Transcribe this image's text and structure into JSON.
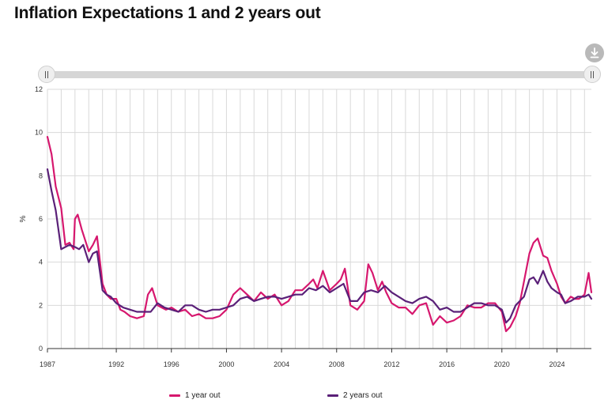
{
  "title": "Inflation Expectations 1 and 2 years out",
  "download_icon": "download-icon",
  "colors": {
    "series1": "#d6176e",
    "series2": "#5a2078",
    "grid": "#d9d9d9",
    "axis": "#333333"
  },
  "chart_data": {
    "type": "line",
    "title": "Inflation Expectations 1 and 2 years out",
    "xlabel": "",
    "ylabel": "%",
    "xlim": [
      1987,
      2026.5
    ],
    "ylim": [
      0,
      12
    ],
    "x_ticks": [
      1987,
      1992,
      1996,
      2000,
      2004,
      2008,
      2012,
      2016,
      2020,
      2024
    ],
    "y_ticks": [
      0,
      2,
      4,
      6,
      8,
      10,
      12
    ],
    "grid": true,
    "legend_position": "bottom",
    "series": [
      {
        "name": "1 year out",
        "x": [
          1987.0,
          1987.3,
          1987.6,
          1988.0,
          1988.3,
          1988.6,
          1988.9,
          1989.0,
          1989.2,
          1989.5,
          1990.0,
          1990.3,
          1990.6,
          1991.0,
          1991.3,
          1991.6,
          1992.0,
          1992.3,
          1992.6,
          1993.0,
          1993.5,
          1994.0,
          1994.3,
          1994.6,
          1995.0,
          1995.3,
          1995.6,
          1996.0,
          1996.5,
          1997.0,
          1997.5,
          1998.0,
          1998.5,
          1999.0,
          1999.5,
          2000.0,
          2000.5,
          2001.0,
          2001.5,
          2002.0,
          2002.5,
          2003.0,
          2003.5,
          2004.0,
          2004.5,
          2005.0,
          2005.5,
          2006.0,
          2006.3,
          2006.6,
          2007.0,
          2007.5,
          2008.0,
          2008.3,
          2008.6,
          2009.0,
          2009.5,
          2010.0,
          2010.3,
          2010.6,
          2011.0,
          2011.3,
          2011.6,
          2012.0,
          2012.5,
          2013.0,
          2013.5,
          2014.0,
          2014.5,
          2015.0,
          2015.5,
          2016.0,
          2016.5,
          2017.0,
          2017.5,
          2018.0,
          2018.5,
          2019.0,
          2019.5,
          2020.0,
          2020.3,
          2020.6,
          2021.0,
          2021.3,
          2021.6,
          2022.0,
          2022.3,
          2022.6,
          2023.0,
          2023.3,
          2023.6,
          2024.0,
          2024.3,
          2024.6,
          2025.0,
          2025.3,
          2025.6,
          2026.0,
          2026.3,
          2026.5
        ],
        "values": [
          9.8,
          9.0,
          7.5,
          6.5,
          4.8,
          4.9,
          4.6,
          6.0,
          6.2,
          5.5,
          4.5,
          4.8,
          5.2,
          3.0,
          2.5,
          2.3,
          2.3,
          1.8,
          1.7,
          1.5,
          1.4,
          1.5,
          2.5,
          2.8,
          2.0,
          1.9,
          1.8,
          1.9,
          1.7,
          1.8,
          1.5,
          1.6,
          1.4,
          1.4,
          1.5,
          1.8,
          2.5,
          2.8,
          2.5,
          2.2,
          2.6,
          2.3,
          2.5,
          2.0,
          2.2,
          2.7,
          2.7,
          3.0,
          3.2,
          2.8,
          3.6,
          2.7,
          3.0,
          3.2,
          3.7,
          2.0,
          1.8,
          2.2,
          3.9,
          3.5,
          2.7,
          3.1,
          2.6,
          2.1,
          1.9,
          1.9,
          1.6,
          2.0,
          2.1,
          1.1,
          1.5,
          1.2,
          1.3,
          1.5,
          2.0,
          1.9,
          1.9,
          2.1,
          2.1,
          1.7,
          0.8,
          1.0,
          1.5,
          2.1,
          3.1,
          4.4,
          4.9,
          5.1,
          4.3,
          4.2,
          3.6,
          3.0,
          2.4,
          2.1,
          2.4,
          2.3,
          2.3,
          2.5,
          3.5,
          2.6
        ]
      },
      {
        "name": "2 years out",
        "x": [
          1987.0,
          1987.3,
          1987.6,
          1988.0,
          1988.3,
          1988.6,
          1989.0,
          1989.3,
          1989.6,
          1990.0,
          1990.3,
          1990.6,
          1991.0,
          1991.3,
          1991.6,
          1992.0,
          1992.5,
          1993.0,
          1993.5,
          1994.0,
          1994.5,
          1995.0,
          1995.5,
          1996.0,
          1996.5,
          1997.0,
          1997.5,
          1998.0,
          1998.5,
          1999.0,
          1999.5,
          2000.0,
          2000.5,
          2001.0,
          2001.5,
          2002.0,
          2002.5,
          2003.0,
          2003.5,
          2004.0,
          2004.5,
          2005.0,
          2005.5,
          2006.0,
          2006.5,
          2007.0,
          2007.5,
          2008.0,
          2008.5,
          2009.0,
          2009.5,
          2010.0,
          2010.5,
          2011.0,
          2011.5,
          2012.0,
          2012.5,
          2013.0,
          2013.5,
          2014.0,
          2014.5,
          2015.0,
          2015.5,
          2016.0,
          2016.5,
          2017.0,
          2017.5,
          2018.0,
          2018.5,
          2019.0,
          2019.5,
          2020.0,
          2020.3,
          2020.6,
          2021.0,
          2021.3,
          2021.6,
          2022.0,
          2022.3,
          2022.6,
          2023.0,
          2023.3,
          2023.6,
          2024.0,
          2024.3,
          2024.6,
          2025.0,
          2025.5,
          2026.0,
          2026.3,
          2026.5
        ],
        "values": [
          8.3,
          7.3,
          6.4,
          4.6,
          4.7,
          4.8,
          4.7,
          4.6,
          4.8,
          4.0,
          4.4,
          4.5,
          2.7,
          2.5,
          2.4,
          2.1,
          1.9,
          1.8,
          1.7,
          1.7,
          1.7,
          2.1,
          1.9,
          1.8,
          1.7,
          2.0,
          2.0,
          1.8,
          1.7,
          1.8,
          1.8,
          1.9,
          2.0,
          2.3,
          2.4,
          2.2,
          2.3,
          2.4,
          2.4,
          2.3,
          2.4,
          2.5,
          2.5,
          2.8,
          2.7,
          2.9,
          2.6,
          2.8,
          3.0,
          2.2,
          2.2,
          2.6,
          2.7,
          2.6,
          2.9,
          2.6,
          2.4,
          2.2,
          2.1,
          2.3,
          2.4,
          2.2,
          1.8,
          1.9,
          1.7,
          1.7,
          1.9,
          2.1,
          2.1,
          2.0,
          2.0,
          1.8,
          1.2,
          1.4,
          2.0,
          2.2,
          2.4,
          3.2,
          3.3,
          3.0,
          3.6,
          3.1,
          2.8,
          2.6,
          2.5,
          2.1,
          2.2,
          2.4,
          2.4,
          2.5,
          2.3
        ]
      }
    ]
  },
  "legend": [
    {
      "label": "1 year out",
      "color": "#d6176e"
    },
    {
      "label": "2 years out",
      "color": "#5a2078"
    }
  ]
}
